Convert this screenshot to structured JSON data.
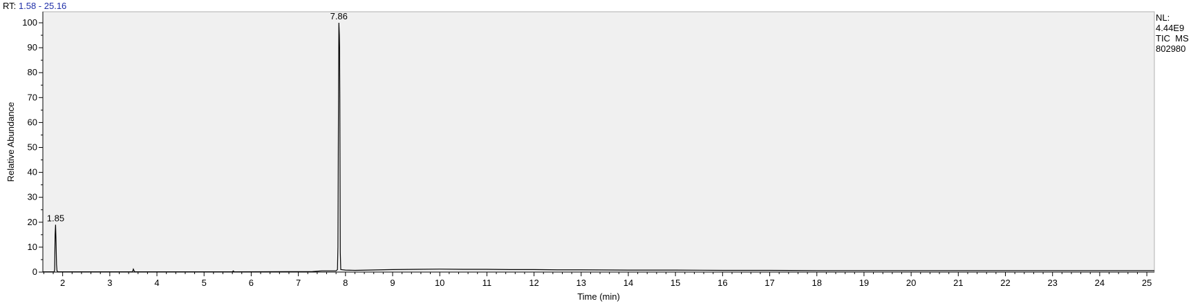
{
  "header": {
    "rt_prefix": "RT:",
    "rt_range": "1.58 - 25.16"
  },
  "info": {
    "nl_label": "NL:",
    "nl_value": "4.44E9",
    "trace": "TIC  MS",
    "scan_id": "802980"
  },
  "colors": {
    "plot_background": "#f0f0f0",
    "trace": "#000000",
    "rt_value": "#1f2fa8"
  },
  "chart_data": {
    "type": "line",
    "xlabel": "Time (min)",
    "ylabel": "Relative Abundance",
    "xlim": [
      1.58,
      25.16
    ],
    "ylim": [
      0,
      100
    ],
    "x_ticks": [
      2,
      3,
      4,
      5,
      6,
      7,
      8,
      9,
      10,
      11,
      12,
      13,
      14,
      15,
      16,
      17,
      18,
      19,
      20,
      21,
      22,
      23,
      24,
      25
    ],
    "y_ticks": [
      0,
      10,
      20,
      30,
      40,
      50,
      60,
      70,
      80,
      90,
      100
    ],
    "grid": false,
    "peaks": [
      {
        "rt": 1.85,
        "label": "1.85",
        "abundance": 19
      },
      {
        "rt": 7.86,
        "label": "7.86",
        "abundance": 100
      }
    ],
    "series": [
      {
        "x": [
          1.58,
          1.82,
          1.83,
          1.84,
          1.85,
          1.86,
          1.87,
          1.88,
          1.9,
          3.48,
          3.5,
          3.52,
          3.54,
          5.6,
          5.62,
          5.64,
          7.3,
          7.5,
          7.8,
          7.83,
          7.84,
          7.85,
          7.86,
          7.87,
          7.875,
          7.88,
          7.89,
          7.9,
          8.0,
          8.2,
          9.0,
          9.5,
          10.0,
          10.5,
          11.0,
          11.5,
          12.0,
          12.5,
          13.0,
          14.0,
          15.0,
          16.0,
          17.0,
          18.0,
          19.0,
          20.0,
          21.0,
          22.0,
          23.0,
          24.0,
          25.0,
          25.16
        ],
        "y": [
          0.1,
          0.1,
          1,
          15,
          19,
          12,
          3,
          0.5,
          0.1,
          0.1,
          1.2,
          0.3,
          0.1,
          0.1,
          0.5,
          0.1,
          0.2,
          0.5,
          0.5,
          1,
          10,
          60,
          100,
          95,
          90,
          70,
          8,
          1,
          0.8,
          0.7,
          1.0,
          1.1,
          1.2,
          1.1,
          1.1,
          1.0,
          1.0,
          0.9,
          0.9,
          0.8,
          0.8,
          0.7,
          0.7,
          0.6,
          0.6,
          0.6,
          0.6,
          0.6,
          0.6,
          0.6,
          0.6,
          0.6
        ]
      }
    ]
  }
}
